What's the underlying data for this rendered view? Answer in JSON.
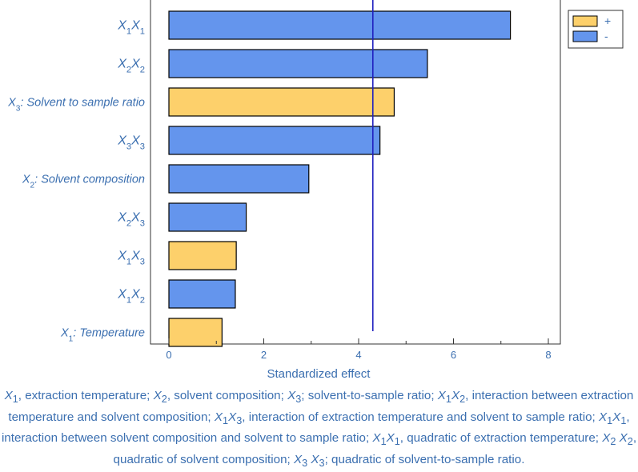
{
  "chart_data": {
    "type": "bar",
    "orientation": "horizontal",
    "xlabel": "Standardized effect",
    "xlim": [
      0,
      8
    ],
    "xticks": [
      "0",
      "2",
      "4",
      "6",
      "8"
    ],
    "reference_line": 4.3,
    "categories": [
      {
        "base": "X",
        "sub": "1",
        "base2": "X",
        "sub2": "1",
        "rest": ""
      },
      {
        "base": "X",
        "sub": "2",
        "base2": "X",
        "sub2": "2",
        "rest": ""
      },
      {
        "base": "X",
        "sub": "3",
        "base2": "",
        "sub2": "",
        "rest": ": Solvent to sample ratio"
      },
      {
        "base": "X",
        "sub": "3",
        "base2": "X",
        "sub2": "3",
        "rest": ""
      },
      {
        "base": "X",
        "sub": "2",
        "base2": "",
        "sub2": "",
        "rest": ": Solvent composition"
      },
      {
        "base": "X",
        "sub": "2",
        "base2": "X",
        "sub2": "3",
        "rest": ""
      },
      {
        "base": "X",
        "sub": "1",
        "base2": "X",
        "sub2": "3",
        "rest": ""
      },
      {
        "base": "X",
        "sub": "1",
        "base2": "X",
        "sub2": "2",
        "rest": ""
      },
      {
        "base": "X",
        "sub": "1",
        "base2": "",
        "sub2": "",
        "rest": ": Temperature"
      }
    ],
    "values": [
      7.2,
      5.45,
      4.75,
      4.45,
      2.95,
      1.63,
      1.42,
      1.4,
      1.12
    ],
    "signs": [
      "-",
      "-",
      "+",
      "-",
      "-",
      "-",
      "+",
      "-",
      "+"
    ],
    "legend": {
      "placement": "top-right",
      "entries": [
        {
          "label": "+",
          "color": "#fdd06b"
        },
        {
          "label": "-",
          "color": "#6495ed"
        }
      ]
    },
    "colors": {
      "positive": "#fdd06b",
      "negative": "#6495ed",
      "reference_line": "#1f1fbf",
      "label": "#3b6fb0"
    }
  },
  "caption": {
    "segments": [
      {
        "t": "X",
        "i": true
      },
      {
        "t": "1",
        "sub": true
      },
      {
        "t": ", extraction temperature; "
      },
      {
        "t": "X",
        "i": true
      },
      {
        "t": "2",
        "sub": true
      },
      {
        "t": ", solvent composition; "
      },
      {
        "t": "X",
        "i": true
      },
      {
        "t": "3",
        "sub": true
      },
      {
        "t": "; solvent-to-sample ratio; "
      },
      {
        "t": "X",
        "i": true
      },
      {
        "t": "1",
        "sub": true
      },
      {
        "t": "X",
        "i": true
      },
      {
        "t": "2",
        "sub": true
      },
      {
        "t": ", interaction between extraction temperature and solvent composition; "
      },
      {
        "t": "X",
        "i": true
      },
      {
        "t": "1",
        "sub": true
      },
      {
        "t": "X",
        "i": true
      },
      {
        "t": "3",
        "sub": true
      },
      {
        "t": ", interaction of extraction temperature and solvent to sample ratio; "
      },
      {
        "t": "X",
        "i": true
      },
      {
        "t": "1",
        "sub": true
      },
      {
        "t": "X",
        "i": true
      },
      {
        "t": "1",
        "sub": true
      },
      {
        "t": ", interaction between solvent composition and solvent to sample ratio; "
      },
      {
        "t": "X",
        "i": true
      },
      {
        "t": "1",
        "sub": true
      },
      {
        "t": "X",
        "i": true
      },
      {
        "t": "1",
        "sub": true
      },
      {
        "t": ", quadratic of extraction temperature; "
      },
      {
        "t": "X",
        "i": true
      },
      {
        "t": "2",
        "sub": true
      },
      {
        "t": " "
      },
      {
        "t": "X",
        "i": true
      },
      {
        "t": "2",
        "sub": true
      },
      {
        "t": ", quadratic of solvent composition; "
      },
      {
        "t": "X",
        "i": true
      },
      {
        "t": "3",
        "sub": true
      },
      {
        "t": " "
      },
      {
        "t": "X",
        "i": true
      },
      {
        "t": "3",
        "sub": true
      },
      {
        "t": "; quadratic of solvent-to-sample ratio."
      }
    ]
  }
}
